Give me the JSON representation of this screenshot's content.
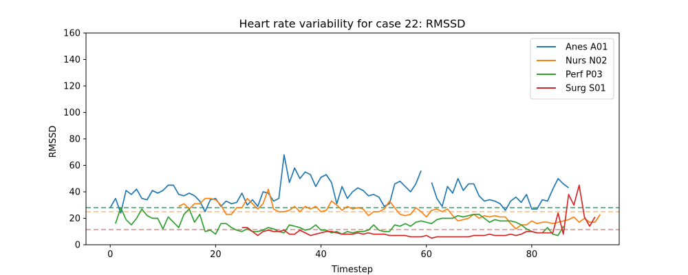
{
  "chart_data": {
    "type": "line",
    "title": "Heart rate variability for case 22: RMSSD",
    "xlabel": "Timestep",
    "ylabel": "RMSSD",
    "xlim": [
      -4.6,
      96.6
    ],
    "ylim": [
      0,
      160
    ],
    "xticks": [
      0,
      20,
      40,
      60,
      80
    ],
    "yticks": [
      0,
      20,
      40,
      60,
      80,
      100,
      120,
      140,
      160
    ],
    "grid": false,
    "legend_position": "top-right",
    "series": [
      {
        "name": "Anes A01",
        "color": "#1f77b4",
        "reference_line": 28,
        "segments": [
          {
            "start": 0,
            "values": [
              28,
              35,
              24,
              41,
              38,
              42,
              35,
              34,
              41,
              39,
              41,
              45,
              45,
              38,
              37,
              39,
              37,
              33,
              25,
              34,
              35,
              29,
              33,
              31,
              32,
              39,
              30,
              34,
              29,
              40,
              39,
              33,
              35,
              68,
              47,
              58,
              50,
              55,
              53,
              44,
              51,
              53,
              47,
              31,
              44,
              35,
              40,
              43,
              41,
              37,
              38,
              36,
              29,
              31,
              46,
              48,
              44,
              40,
              46,
              56
            ]
          },
          {
            "start": 61,
            "values": [
              47,
              35,
              29,
              44,
              39,
              50,
              41,
              46,
              46,
              37,
              33,
              34,
              33,
              31,
              26,
              33,
              36,
              32,
              38,
              27,
              27,
              34,
              33,
              42,
              50,
              46,
              43
            ]
          }
        ]
      },
      {
        "name": "Nurs N02",
        "color": "#ff7f0e",
        "reference_line": 25,
        "segments": [
          {
            "start": 13,
            "values": [
              29,
              31,
              27,
              31,
              31,
              35,
              35,
              34,
              30,
              23,
              23,
              28,
              28,
              35,
              31,
              27,
              31,
              42,
              27,
              25,
              25,
              26,
              29,
              25,
              29,
              27,
              29,
              25,
              26,
              33,
              30,
              26,
              29,
              27,
              28,
              27,
              22,
              25,
              25,
              27,
              33,
              28,
              23,
              22,
              23,
              28,
              25,
              21,
              26,
              27,
              25,
              27,
              22,
              18,
              19,
              20,
              23,
              20,
              22,
              21,
              22,
              21,
              21,
              16,
              12,
              15,
              15,
              18,
              16,
              17,
              17,
              16,
              17,
              18,
              19,
              21,
              17,
              20,
              17,
              17,
              23
            ]
          }
        ]
      },
      {
        "name": "Perf P03",
        "color": "#2ca02c",
        "reference_line": 28,
        "segments": [
          {
            "start": 1,
            "values": [
              16,
              28,
              19,
              15,
              20,
              27,
              22,
              20,
              20,
              12,
              21,
              17,
              13,
              23,
              27,
              17,
              23,
              10,
              11,
              8,
              16,
              16,
              13,
              11,
              10,
              12,
              10,
              10,
              11,
              13,
              12,
              10,
              9,
              15,
              14,
              13,
              11,
              12,
              15,
              11,
              11,
              9,
              10,
              8,
              10,
              9,
              10,
              10,
              11,
              15,
              11,
              10,
              10,
              15,
              14,
              16,
              14,
              17,
              18,
              17,
              16,
              19,
              20,
              20,
              20,
              22,
              21,
              22,
              23,
              23,
              20,
              17,
              19,
              18,
              18,
              18,
              17,
              15,
              12,
              10,
              9,
              9,
              13,
              8,
              7,
              14
            ]
          }
        ]
      },
      {
        "name": "Surg S01",
        "color": "#d62728",
        "reference_line": 11.5,
        "segments": [
          {
            "start": 25,
            "values": [
              13,
              13,
              10,
              7,
              10,
              11,
              10,
              10,
              11,
              8,
              8,
              11,
              9,
              7,
              8,
              9,
              10,
              10,
              9,
              8,
              8,
              8,
              9,
              8,
              9,
              8,
              8,
              8,
              7,
              7,
              7,
              7,
              6,
              6,
              6,
              7,
              5,
              6,
              6,
              6,
              6,
              6,
              6,
              6,
              7,
              7,
              7,
              8,
              7,
              7,
              7,
              8,
              7,
              8,
              10,
              10,
              9,
              9,
              9,
              9,
              24,
              8,
              38,
              30,
              45,
              21,
              14,
              21
            ]
          }
        ]
      }
    ]
  }
}
